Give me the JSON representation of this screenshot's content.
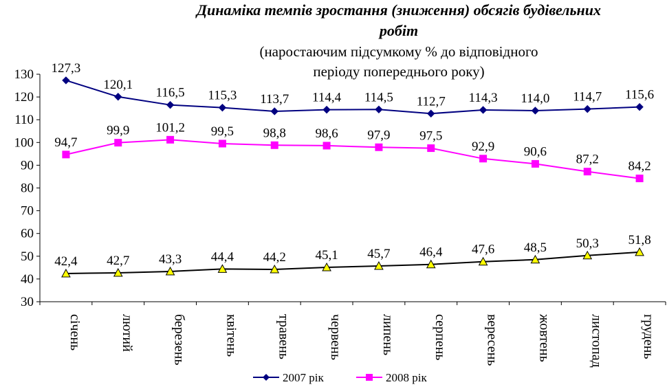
{
  "chart_data": {
    "type": "line",
    "title_line1": "Динаміка темпів зростання (зниження) обсягів будівельних",
    "title_line2": "робіт",
    "subtitle_line1": "(наростаючим підсумкому % до відповідного",
    "subtitle_line2": "періоду попереднього року)",
    "categories": [
      "січень",
      "лютий",
      "березень",
      "квітень",
      "травень",
      "червень",
      "липень",
      "серпень",
      "вересень",
      "жовтень",
      "листопад",
      "грудень"
    ],
    "ylim": [
      30,
      130
    ],
    "yticks": [
      30,
      40,
      50,
      60,
      70,
      80,
      90,
      100,
      110,
      120,
      130
    ],
    "grid": false,
    "legend_position": "bottom",
    "series": [
      {
        "name": "2007 рік",
        "color": "#000080",
        "marker": "diamond",
        "values": [
          127.3,
          120.1,
          116.5,
          115.3,
          113.7,
          114.4,
          114.5,
          112.7,
          114.3,
          114.0,
          114.7,
          115.6
        ],
        "labels": [
          "127,3",
          "120,1",
          "116,5",
          "115,3",
          "113,7",
          "114,4",
          "114,5",
          "112,7",
          "114,3",
          "114,0",
          "114,7",
          "115,6"
        ]
      },
      {
        "name": "2008 рік",
        "color": "#FF00FF",
        "marker": "square",
        "values": [
          94.7,
          99.9,
          101.2,
          99.5,
          98.8,
          98.6,
          97.9,
          97.5,
          92.9,
          90.6,
          87.2,
          84.2
        ],
        "labels": [
          "94,7",
          "99,9",
          "101,2",
          "99,5",
          "98,8",
          "98,6",
          "97,9",
          "97,5",
          "92,9",
          "90,6",
          "87,2",
          "84,2"
        ]
      },
      {
        "color": "#000000",
        "marker": "triangle",
        "marker_fill": "#FFFF00",
        "values": [
          42.4,
          42.7,
          43.3,
          44.4,
          44.2,
          45.1,
          45.7,
          46.4,
          47.6,
          48.5,
          50.3,
          51.8
        ],
        "labels": [
          "42,4",
          "42,7",
          "43,3",
          "44,4",
          "44,2",
          "45,1",
          "45,7",
          "46,4",
          "47,6",
          "48,5",
          "50,3",
          "51,8"
        ]
      }
    ]
  }
}
